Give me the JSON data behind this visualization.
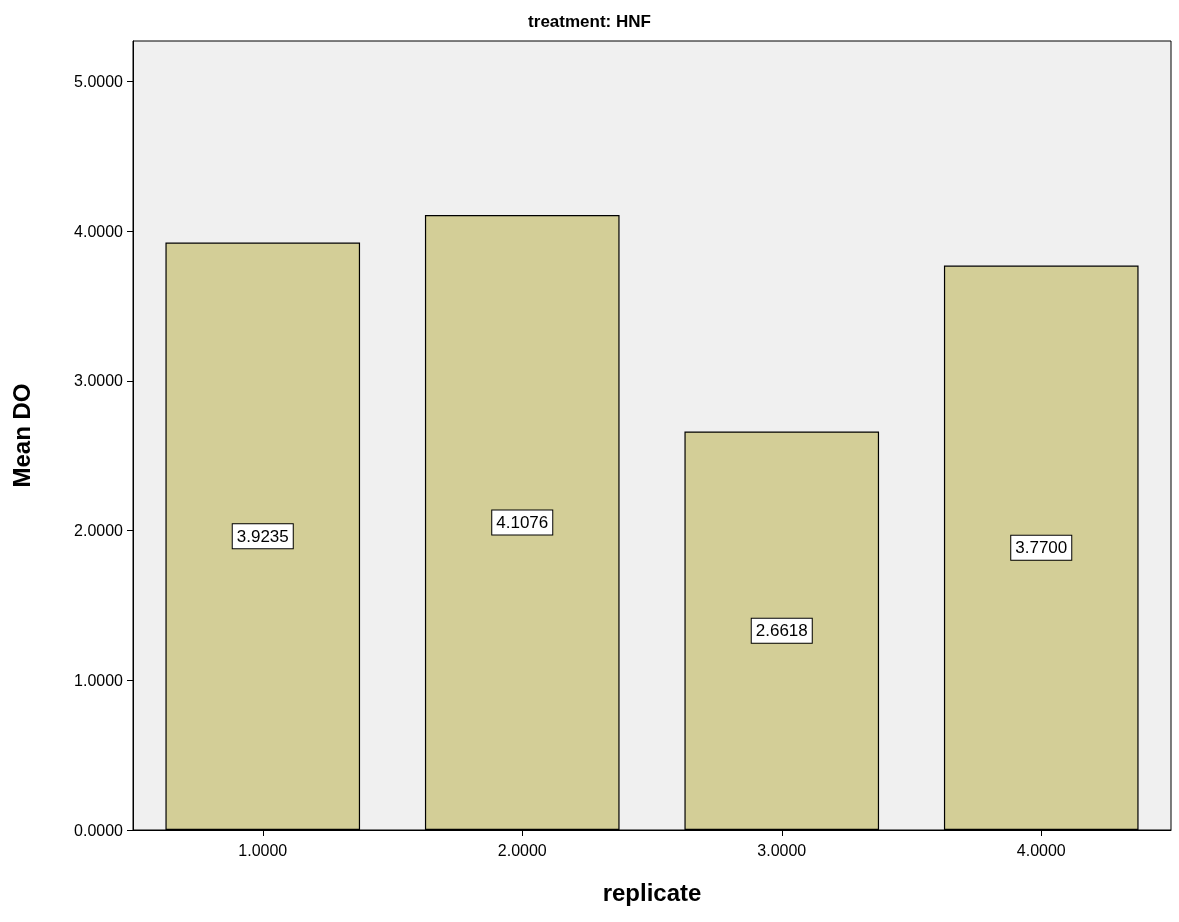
{
  "chart_data": {
    "type": "bar",
    "title": "treatment: HNF",
    "xlabel": "replicate",
    "ylabel": "Mean DO",
    "categories": [
      "1.0000",
      "2.0000",
      "3.0000",
      "4.0000"
    ],
    "values": [
      3.9235,
      4.1076,
      2.6618,
      3.77
    ],
    "color": "#d3ce97",
    "ylim": [
      0,
      5.27
    ],
    "yticks": [
      {
        "value": 0,
        "label": "0.0000"
      },
      {
        "value": 1,
        "label": "1.0000"
      },
      {
        "value": 2,
        "label": "2.0000"
      },
      {
        "value": 3,
        "label": "3.0000"
      },
      {
        "value": 4,
        "label": "4.0000"
      },
      {
        "value": 5,
        "label": "5.0000"
      }
    ],
    "value_labels": [
      "3.9235",
      "4.1076",
      "2.6618",
      "3.7700"
    ],
    "grid": false
  }
}
